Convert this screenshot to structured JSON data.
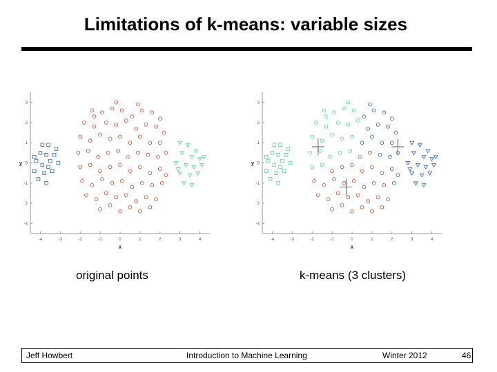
{
  "slide": {
    "title": "Limitations of k-means: variable sizes",
    "caption_left": "original points",
    "caption_right": "k-means (3 clusters)"
  },
  "footer": {
    "author": "Jeff Howbert",
    "course": "Introduction to Machine Learning",
    "term": "Winter 2012",
    "page": "46"
  },
  "colors": {
    "red": "#d2593f",
    "blue": "#3f6fbf",
    "cyan": "#5fd6a8"
  },
  "chart_data": [
    {
      "type": "scatter",
      "caption": "original points",
      "xlabel": "x",
      "ylabel": "y",
      "xlim": [
        -4.5,
        4.5
      ],
      "ylim": [
        -3.5,
        3.5
      ],
      "xticks": [
        "-4",
        "-3",
        "-2",
        "-1",
        "0",
        "1",
        "2",
        "3",
        "4"
      ],
      "yticks": [
        "3",
        "2",
        "1",
        "0",
        "-1",
        "2",
        "-3"
      ],
      "grid": false,
      "series": [
        {
          "color": "blue",
          "marker": "square",
          "points": [
            [
              -3.9,
              0.9
            ],
            [
              -3.6,
              0.9
            ],
            [
              -3.2,
              0.7
            ],
            [
              -4.0,
              0.5
            ],
            [
              -3.7,
              0.4
            ],
            [
              -3.3,
              0.4
            ],
            [
              -4.2,
              0.1
            ],
            [
              -3.9,
              -0.1
            ],
            [
              -3.5,
              0.1
            ],
            [
              -3.1,
              0.0
            ],
            [
              -4.3,
              -0.4
            ],
            [
              -3.8,
              -0.5
            ],
            [
              -3.4,
              -0.4
            ],
            [
              -4.1,
              -0.8
            ],
            [
              -3.7,
              -1.0
            ],
            [
              -4.3,
              0.3
            ],
            [
              -3.6,
              -0.2
            ]
          ]
        },
        {
          "color": "red",
          "marker": "circle",
          "points": [
            [
              -1.4,
              2.6
            ],
            [
              -0.9,
              2.5
            ],
            [
              -0.4,
              2.7
            ],
            [
              0.1,
              2.6
            ],
            [
              0.6,
              2.3
            ],
            [
              1.1,
              2.6
            ],
            [
              1.6,
              2.5
            ],
            [
              2.0,
              2.2
            ],
            [
              -1.8,
              2.0
            ],
            [
              -1.3,
              1.8
            ],
            [
              -0.7,
              2.0
            ],
            [
              -0.2,
              1.9
            ],
            [
              0.3,
              2.1
            ],
            [
              0.8,
              1.7
            ],
            [
              1.3,
              1.9
            ],
            [
              1.8,
              1.8
            ],
            [
              2.2,
              1.5
            ],
            [
              -2.0,
              1.3
            ],
            [
              -1.5,
              1.1
            ],
            [
              -1.0,
              1.4
            ],
            [
              -0.5,
              1.2
            ],
            [
              0.0,
              1.3
            ],
            [
              0.5,
              1.0
            ],
            [
              1.0,
              1.3
            ],
            [
              1.5,
              1.0
            ],
            [
              2.0,
              1.0
            ],
            [
              -2.1,
              0.5
            ],
            [
              -1.6,
              0.6
            ],
            [
              -1.1,
              0.3
            ],
            [
              -0.6,
              0.5
            ],
            [
              -0.1,
              0.6
            ],
            [
              0.4,
              0.3
            ],
            [
              0.9,
              0.5
            ],
            [
              1.4,
              0.4
            ],
            [
              1.9,
              0.3
            ],
            [
              2.3,
              0.5
            ],
            [
              -2.0,
              -0.2
            ],
            [
              -1.5,
              -0.1
            ],
            [
              -1.0,
              -0.4
            ],
            [
              -0.5,
              -0.2
            ],
            [
              0.0,
              -0.1
            ],
            [
              0.5,
              -0.4
            ],
            [
              1.0,
              -0.2
            ],
            [
              1.5,
              -0.5
            ],
            [
              2.0,
              -0.3
            ],
            [
              2.3,
              -0.6
            ],
            [
              -1.9,
              -0.9
            ],
            [
              -1.4,
              -1.1
            ],
            [
              -0.9,
              -0.8
            ],
            [
              -0.4,
              -1.0
            ],
            [
              0.1,
              -0.9
            ],
            [
              0.6,
              -1.2
            ],
            [
              1.1,
              -1.0
            ],
            [
              1.6,
              -1.1
            ],
            [
              2.1,
              -1.0
            ],
            [
              -1.7,
              -1.6
            ],
            [
              -1.2,
              -1.8
            ],
            [
              -0.7,
              -1.5
            ],
            [
              -0.2,
              -1.7
            ],
            [
              0.3,
              -1.6
            ],
            [
              0.8,
              -1.9
            ],
            [
              1.3,
              -1.7
            ],
            [
              1.8,
              -1.8
            ],
            [
              -1.0,
              -2.3
            ],
            [
              -0.5,
              -2.1
            ],
            [
              0.0,
              -2.4
            ],
            [
              0.5,
              -2.2
            ],
            [
              1.0,
              -2.4
            ],
            [
              1.5,
              -2.2
            ],
            [
              -1.3,
              2.3
            ],
            [
              0.9,
              2.9
            ],
            [
              -0.2,
              3.0
            ]
          ]
        },
        {
          "color": "cyan",
          "marker": "triangle-down",
          "points": [
            [
              3.0,
              1.0
            ],
            [
              3.4,
              0.9
            ],
            [
              3.8,
              0.6
            ],
            [
              3.1,
              0.5
            ],
            [
              3.6,
              0.3
            ],
            [
              4.0,
              0.2
            ],
            [
              2.8,
              0.0
            ],
            [
              3.3,
              -0.1
            ],
            [
              3.7,
              -0.2
            ],
            [
              4.1,
              -0.1
            ],
            [
              3.0,
              -0.5
            ],
            [
              3.5,
              -0.6
            ],
            [
              3.9,
              -0.5
            ],
            [
              3.2,
              -1.0
            ],
            [
              3.6,
              -1.1
            ],
            [
              2.9,
              -0.3
            ],
            [
              4.2,
              0.3
            ]
          ]
        }
      ]
    },
    {
      "type": "scatter",
      "caption": "k-means (3 clusters)",
      "xlabel": "x",
      "ylabel": "y",
      "xlim": [
        -4.5,
        4.5
      ],
      "ylim": [
        -3.5,
        3.5
      ],
      "xticks": [
        "-4",
        "-3",
        "-2",
        "-1",
        "0",
        "1",
        "2",
        "3",
        "4"
      ],
      "yticks": [
        "3",
        "2",
        "1",
        "0",
        "-1",
        "2",
        "-3"
      ],
      "grid": false,
      "series": [
        {
          "color": "cyan",
          "marker": "square",
          "points": [
            [
              -3.9,
              0.9
            ],
            [
              -3.6,
              0.9
            ],
            [
              -3.2,
              0.7
            ],
            [
              -4.0,
              0.5
            ],
            [
              -3.7,
              0.4
            ],
            [
              -3.3,
              0.4
            ],
            [
              -4.2,
              0.1
            ],
            [
              -3.9,
              -0.1
            ],
            [
              -3.5,
              0.1
            ],
            [
              -3.1,
              0.0
            ],
            [
              -4.3,
              -0.4
            ],
            [
              -3.8,
              -0.5
            ],
            [
              -3.4,
              -0.4
            ],
            [
              -4.1,
              -0.8
            ],
            [
              -3.7,
              -1.0
            ],
            [
              -4.3,
              0.3
            ],
            [
              -3.6,
              -0.2
            ]
          ]
        },
        {
          "color": "cyan",
          "marker": "circle",
          "points": [
            [
              -1.4,
              2.6
            ],
            [
              -0.9,
              2.5
            ],
            [
              -0.4,
              2.7
            ],
            [
              -1.8,
              2.0
            ],
            [
              -1.3,
              1.8
            ],
            [
              -0.7,
              2.0
            ],
            [
              -0.2,
              1.9
            ],
            [
              -2.0,
              1.3
            ],
            [
              -1.5,
              1.1
            ],
            [
              -1.0,
              1.4
            ],
            [
              -0.5,
              1.2
            ],
            [
              -2.1,
              0.5
            ],
            [
              -1.6,
              0.6
            ],
            [
              -1.1,
              0.3
            ],
            [
              -0.6,
              0.5
            ],
            [
              -0.1,
              0.6
            ],
            [
              -2.0,
              -0.2
            ],
            [
              -1.5,
              -0.1
            ],
            [
              -1.3,
              2.3
            ],
            [
              -0.2,
              3.0
            ],
            [
              0.1,
              2.6
            ],
            [
              0.3,
              2.1
            ],
            [
              0.0,
              1.3
            ]
          ]
        },
        {
          "color": "blue",
          "marker": "circle",
          "points": [
            [
              0.6,
              2.3
            ],
            [
              1.1,
              2.6
            ],
            [
              1.6,
              2.5
            ],
            [
              2.0,
              2.2
            ],
            [
              0.8,
              1.7
            ],
            [
              1.3,
              1.9
            ],
            [
              1.8,
              1.8
            ],
            [
              2.2,
              1.5
            ],
            [
              0.5,
              1.0
            ],
            [
              1.0,
              1.3
            ],
            [
              1.5,
              1.0
            ],
            [
              2.0,
              1.0
            ],
            [
              1.4,
              0.4
            ],
            [
              1.9,
              0.3
            ],
            [
              2.3,
              0.5
            ],
            [
              2.0,
              -0.3
            ],
            [
              2.3,
              -0.6
            ],
            [
              2.1,
              -1.0
            ],
            [
              0.9,
              2.9
            ]
          ]
        },
        {
          "color": "red",
          "marker": "circle",
          "points": [
            [
              0.4,
              0.3
            ],
            [
              0.9,
              0.5
            ],
            [
              -1.0,
              -0.4
            ],
            [
              -0.5,
              -0.2
            ],
            [
              0.0,
              -0.1
            ],
            [
              0.5,
              -0.4
            ],
            [
              1.0,
              -0.2
            ],
            [
              1.5,
              -0.5
            ],
            [
              -1.9,
              -0.9
            ],
            [
              -1.4,
              -1.1
            ],
            [
              -0.9,
              -0.8
            ],
            [
              -0.4,
              -1.0
            ],
            [
              0.1,
              -0.9
            ],
            [
              0.6,
              -1.2
            ],
            [
              1.1,
              -1.0
            ],
            [
              1.6,
              -1.1
            ],
            [
              -1.7,
              -1.6
            ],
            [
              -1.2,
              -1.8
            ],
            [
              -0.7,
              -1.5
            ],
            [
              -0.2,
              -1.7
            ],
            [
              0.3,
              -1.6
            ],
            [
              0.8,
              -1.9
            ],
            [
              1.3,
              -1.7
            ],
            [
              1.8,
              -1.8
            ],
            [
              -1.0,
              -2.3
            ],
            [
              -0.5,
              -2.1
            ],
            [
              0.0,
              -2.4
            ],
            [
              0.5,
              -2.2
            ],
            [
              1.0,
              -2.4
            ],
            [
              1.5,
              -2.2
            ]
          ]
        },
        {
          "color": "blue",
          "marker": "triangle-down",
          "points": [
            [
              3.0,
              1.0
            ],
            [
              3.4,
              0.9
            ],
            [
              3.8,
              0.6
            ],
            [
              3.1,
              0.5
            ],
            [
              3.6,
              0.3
            ],
            [
              4.0,
              0.2
            ],
            [
              2.8,
              0.0
            ],
            [
              3.3,
              -0.1
            ],
            [
              3.7,
              -0.2
            ],
            [
              4.1,
              -0.1
            ],
            [
              3.0,
              -0.5
            ],
            [
              3.5,
              -0.6
            ],
            [
              3.9,
              -0.5
            ],
            [
              3.2,
              -1.0
            ],
            [
              3.6,
              -1.1
            ],
            [
              2.9,
              -0.3
            ],
            [
              4.2,
              0.3
            ]
          ]
        }
      ],
      "centroids": [
        [
          -1.7,
          0.8
        ],
        [
          2.3,
          0.8
        ],
        [
          -0.3,
          -1.2
        ]
      ]
    }
  ]
}
